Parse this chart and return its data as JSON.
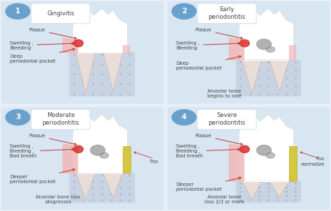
{
  "background_color": "#e8eef5",
  "panel_bg_color": "#d8e6f2",
  "panels": [
    {
      "number": "1",
      "title": "Gingivitis",
      "label_plaque": "Plaque",
      "label_swelling": "Swelling ,\nBleeding",
      "label_pocket": "Deep\nperiodontal pocket",
      "has_gray_blob": false,
      "has_pus": false,
      "bottom_label": "",
      "pus_label": "",
      "bone_loss_level": 0
    },
    {
      "number": "2",
      "title": "Early\nperiodontitis",
      "label_plaque": "Plaque",
      "label_swelling": "Swelling ,\nBleeding",
      "label_pocket": "Deep\nperiodontal pocket",
      "has_gray_blob": true,
      "has_pus": false,
      "bottom_label": "Alveolar bone\nbegins to lose",
      "pus_label": "",
      "bone_loss_level": 1
    },
    {
      "number": "3",
      "title": "Moderate\nperiodontitis",
      "label_plaque": "Plaque",
      "label_swelling": "Swelling ,\nBleeding ,\nBad breath",
      "label_pocket": "Deeper\nperiodontal pocket",
      "has_gray_blob": true,
      "has_pus": true,
      "bottom_label": "Alveolar bone loss\nprogresses",
      "pus_label": "Pus",
      "bone_loss_level": 2
    },
    {
      "number": "4",
      "title": "Severe\nperiodontitis",
      "label_plaque": "Plaque",
      "label_swelling": "Swelling ,\nBleeding ,\nBad breath",
      "label_pocket": "Deeper\nperiodontal pocket",
      "has_gray_blob": true,
      "has_pus": true,
      "bottom_label": "Alveolar bone\nloss 2/3 or more",
      "pus_label": "Pus\nnormalize",
      "bone_loss_level": 3
    }
  ],
  "tooth_color": "#ffffff",
  "tooth_edge": "#e0e0e0",
  "gum_pink": "#f0b8b8",
  "gum_red": "#d83030",
  "bone_bg": "#c8d4e4",
  "root_fill": "#e8ddd8",
  "root_line": "#d4b8b0",
  "gray_blob": "#999999",
  "pus_yellow": "#d4c840",
  "pus_edge": "#b8aa20",
  "arrow_color": "#c03030",
  "number_bg": "#6aa0cc",
  "number_fg": "#ffffff",
  "title_box": "#ffffff",
  "title_edge": "#ccddee",
  "label_color": "#444444",
  "fs_label": 5.0,
  "fs_number": 7.5,
  "fs_title": 6.0
}
